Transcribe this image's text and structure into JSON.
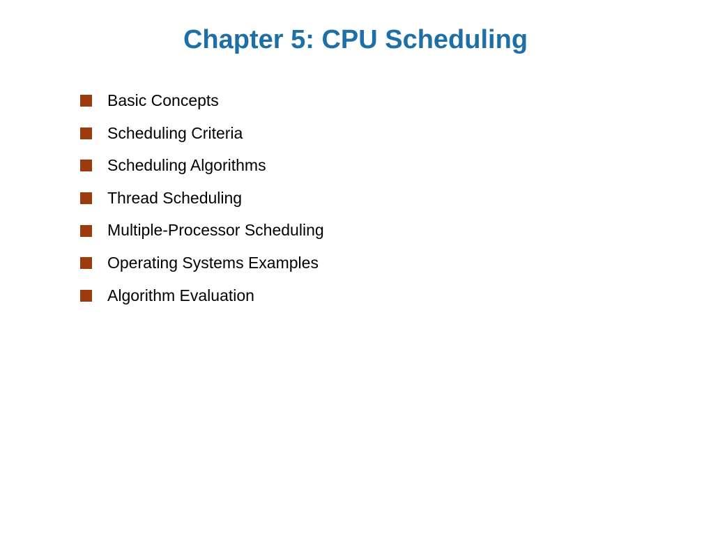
{
  "title": {
    "text": "Chapter 5:  CPU Scheduling",
    "color": "#1d6fa5",
    "fontsize": 38
  },
  "bullets": {
    "items": [
      {
        "label": "Basic Concepts"
      },
      {
        "label": "Scheduling Criteria"
      },
      {
        "label": "Scheduling Algorithms"
      },
      {
        "label": "Thread Scheduling"
      },
      {
        "label": "Multiple-Processor Scheduling"
      },
      {
        "label": "Operating Systems Examples"
      },
      {
        "label": "Algorithm Evaluation"
      }
    ],
    "bullet_color": "#9b3b0e",
    "text_color": "#000000",
    "text_fontsize": 23
  },
  "background_color": "#ffffff"
}
